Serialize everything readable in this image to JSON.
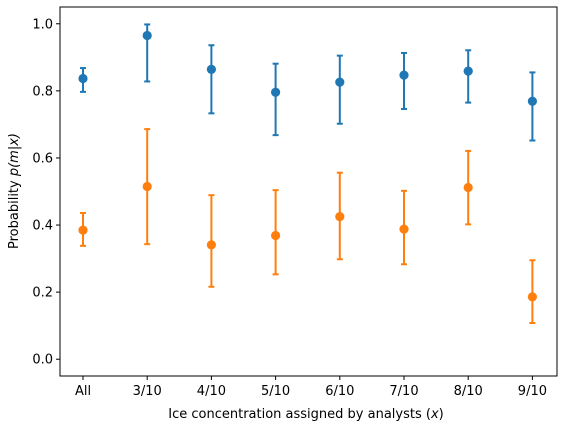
{
  "chart_data": {
    "type": "scatter",
    "title": "",
    "xlabel_text": "Ice concentration assigned by analysts (",
    "xlabel_var": "x",
    "xlabel_close": ")",
    "ylabel_text": "Probability ",
    "ylabel_math": "p(m|x)",
    "categories": [
      "All",
      "3/10",
      "4/10",
      "5/10",
      "6/10",
      "7/10",
      "8/10",
      "9/10"
    ],
    "ylim": [
      -0.05,
      1.05
    ],
    "yticks": [
      0.0,
      0.2,
      0.4,
      0.6,
      0.8,
      1.0
    ],
    "ytick_labels": [
      "0.0",
      "0.2",
      "0.4",
      "0.6",
      "0.8",
      "1.0"
    ],
    "grid": false,
    "legend": "none",
    "series": [
      {
        "color": "#1f77b4",
        "values": [
          0.837,
          0.965,
          0.864,
          0.796,
          0.826,
          0.847,
          0.859,
          0.769
        ],
        "err_low": [
          0.797,
          0.828,
          0.733,
          0.668,
          0.702,
          0.746,
          0.765,
          0.652
        ],
        "err_high": [
          0.868,
          0.998,
          0.936,
          0.881,
          0.905,
          0.913,
          0.921,
          0.855
        ]
      },
      {
        "color": "#ff7f0e",
        "values": [
          0.385,
          0.515,
          0.341,
          0.369,
          0.425,
          0.388,
          0.512,
          0.186
        ],
        "err_low": [
          0.338,
          0.343,
          0.216,
          0.253,
          0.298,
          0.283,
          0.402,
          0.108
        ],
        "err_high": [
          0.436,
          0.686,
          0.489,
          0.504,
          0.556,
          0.502,
          0.621,
          0.295
        ]
      }
    ]
  }
}
